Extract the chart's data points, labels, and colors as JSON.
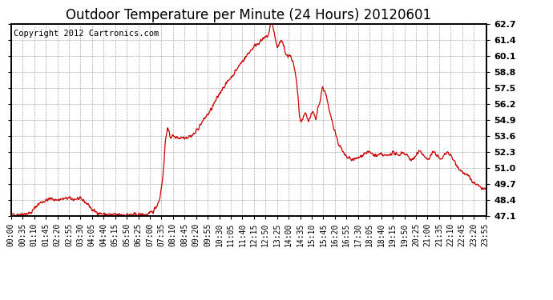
{
  "title": "Outdoor Temperature per Minute (24 Hours) 20120601",
  "copyright_text": "Copyright 2012 Cartronics.com",
  "line_color": "#cc0000",
  "background_color": "#ffffff",
  "grid_color": "#999999",
  "ylim": [
    47.1,
    62.7
  ],
  "yticks": [
    47.1,
    48.4,
    49.7,
    51.0,
    52.3,
    53.6,
    54.9,
    56.2,
    57.5,
    58.8,
    60.1,
    61.4,
    62.7
  ],
  "title_fontsize": 12,
  "copyright_fontsize": 7.5,
  "tick_fontsize": 7,
  "xtick_step": 35,
  "line_width": 0.9,
  "keypoints": [
    [
      0,
      47.2
    ],
    [
      30,
      47.25
    ],
    [
      50,
      47.3
    ],
    [
      60,
      47.35
    ],
    [
      65,
      47.5
    ],
    [
      70,
      47.7
    ],
    [
      75,
      47.85
    ],
    [
      80,
      48.0
    ],
    [
      85,
      48.1
    ],
    [
      90,
      48.2
    ],
    [
      95,
      48.25
    ],
    [
      100,
      48.3
    ],
    [
      105,
      48.35
    ],
    [
      110,
      48.4
    ],
    [
      115,
      48.45
    ],
    [
      120,
      48.5
    ],
    [
      130,
      48.45
    ],
    [
      140,
      48.4
    ],
    [
      150,
      48.45
    ],
    [
      160,
      48.5
    ],
    [
      165,
      48.5
    ],
    [
      170,
      48.55
    ],
    [
      175,
      48.55
    ],
    [
      180,
      48.5
    ],
    [
      190,
      48.45
    ],
    [
      200,
      48.5
    ],
    [
      205,
      48.5
    ],
    [
      210,
      48.45
    ],
    [
      215,
      48.4
    ],
    [
      220,
      48.35
    ],
    [
      225,
      48.2
    ],
    [
      230,
      48.1
    ],
    [
      235,
      48.0
    ],
    [
      240,
      47.8
    ],
    [
      245,
      47.6
    ],
    [
      250,
      47.5
    ],
    [
      260,
      47.4
    ],
    [
      270,
      47.3
    ],
    [
      280,
      47.25
    ],
    [
      300,
      47.2
    ],
    [
      320,
      47.2
    ],
    [
      340,
      47.2
    ],
    [
      360,
      47.2
    ],
    [
      380,
      47.2
    ],
    [
      400,
      47.2
    ],
    [
      410,
      47.2
    ],
    [
      420,
      47.3
    ],
    [
      430,
      47.5
    ],
    [
      440,
      47.9
    ],
    [
      450,
      48.5
    ],
    [
      455,
      49.5
    ],
    [
      460,
      50.5
    ],
    [
      463,
      51.5
    ],
    [
      465,
      52.5
    ],
    [
      467,
      53.2
    ],
    [
      469,
      53.6
    ],
    [
      471,
      54.0
    ],
    [
      473,
      54.2
    ],
    [
      475,
      54.1
    ],
    [
      477,
      53.9
    ],
    [
      480,
      53.7
    ],
    [
      483,
      53.5
    ],
    [
      486,
      53.6
    ],
    [
      490,
      53.6
    ],
    [
      495,
      53.5
    ],
    [
      500,
      53.5
    ],
    [
      505,
      53.5
    ],
    [
      510,
      53.4
    ],
    [
      515,
      53.5
    ],
    [
      520,
      53.5
    ],
    [
      525,
      53.5
    ],
    [
      530,
      53.5
    ],
    [
      535,
      53.5
    ],
    [
      540,
      53.6
    ],
    [
      545,
      53.6
    ],
    [
      550,
      53.7
    ],
    [
      555,
      53.8
    ],
    [
      560,
      54.0
    ],
    [
      565,
      54.2
    ],
    [
      570,
      54.4
    ],
    [
      575,
      54.6
    ],
    [
      580,
      54.8
    ],
    [
      590,
      55.2
    ],
    [
      600,
      55.5
    ],
    [
      610,
      56.0
    ],
    [
      620,
      56.5
    ],
    [
      630,
      57.0
    ],
    [
      640,
      57.5
    ],
    [
      650,
      57.8
    ],
    [
      660,
      58.2
    ],
    [
      670,
      58.5
    ],
    [
      680,
      58.9
    ],
    [
      690,
      59.3
    ],
    [
      700,
      59.7
    ],
    [
      710,
      60.0
    ],
    [
      720,
      60.4
    ],
    [
      730,
      60.7
    ],
    [
      740,
      61.0
    ],
    [
      750,
      61.2
    ],
    [
      760,
      61.4
    ],
    [
      765,
      61.5
    ],
    [
      770,
      61.6
    ],
    [
      775,
      61.7
    ],
    [
      778,
      61.8
    ],
    [
      780,
      62.0
    ],
    [
      782,
      62.2
    ],
    [
      784,
      62.5
    ],
    [
      786,
      62.8
    ],
    [
      788,
      63.0
    ],
    [
      790,
      62.9
    ],
    [
      792,
      62.6
    ],
    [
      794,
      62.3
    ],
    [
      796,
      62.0
    ],
    [
      798,
      61.7
    ],
    [
      800,
      61.4
    ],
    [
      802,
      61.2
    ],
    [
      804,
      61.0
    ],
    [
      806,
      60.8
    ],
    [
      808,
      60.9
    ],
    [
      810,
      61.0
    ],
    [
      812,
      61.1
    ],
    [
      814,
      61.2
    ],
    [
      816,
      61.3
    ],
    [
      818,
      61.3
    ],
    [
      820,
      61.2
    ],
    [
      822,
      61.1
    ],
    [
      824,
      60.9
    ],
    [
      826,
      60.8
    ],
    [
      828,
      60.6
    ],
    [
      830,
      60.4
    ],
    [
      832,
      60.3
    ],
    [
      834,
      60.2
    ],
    [
      836,
      60.1
    ],
    [
      838,
      60.0
    ],
    [
      840,
      60.1
    ],
    [
      842,
      60.2
    ],
    [
      844,
      60.1
    ],
    [
      846,
      60.0
    ],
    [
      848,
      59.9
    ],
    [
      850,
      59.8
    ],
    [
      852,
      59.7
    ],
    [
      854,
      59.5
    ],
    [
      856,
      59.3
    ],
    [
      858,
      59.0
    ],
    [
      860,
      58.7
    ],
    [
      862,
      58.3
    ],
    [
      864,
      57.9
    ],
    [
      866,
      57.4
    ],
    [
      868,
      56.8
    ],
    [
      870,
      56.2
    ],
    [
      872,
      55.5
    ],
    [
      874,
      55.0
    ],
    [
      876,
      54.8
    ],
    [
      878,
      54.7
    ],
    [
      880,
      54.8
    ],
    [
      882,
      54.9
    ],
    [
      884,
      55.0
    ],
    [
      886,
      55.2
    ],
    [
      888,
      55.3
    ],
    [
      890,
      55.4
    ],
    [
      892,
      55.3
    ],
    [
      894,
      55.2
    ],
    [
      896,
      55.0
    ],
    [
      898,
      54.9
    ],
    [
      900,
      54.8
    ],
    [
      902,
      54.9
    ],
    [
      904,
      55.0
    ],
    [
      906,
      55.2
    ],
    [
      908,
      55.3
    ],
    [
      910,
      55.4
    ],
    [
      912,
      55.5
    ],
    [
      914,
      55.5
    ],
    [
      916,
      55.4
    ],
    [
      918,
      55.3
    ],
    [
      920,
      55.1
    ],
    [
      922,
      55.0
    ],
    [
      924,
      55.2
    ],
    [
      926,
      55.5
    ],
    [
      928,
      55.8
    ],
    [
      930,
      56.0
    ],
    [
      932,
      56.2
    ],
    [
      934,
      56.4
    ],
    [
      936,
      56.5
    ],
    [
      938,
      57.0
    ],
    [
      940,
      57.3
    ],
    [
      942,
      57.5
    ],
    [
      944,
      57.5
    ],
    [
      946,
      57.4
    ],
    [
      948,
      57.3
    ],
    [
      950,
      57.2
    ],
    [
      952,
      57.0
    ],
    [
      954,
      56.8
    ],
    [
      956,
      56.5
    ],
    [
      958,
      56.3
    ],
    [
      960,
      56.0
    ],
    [
      962,
      55.7
    ],
    [
      964,
      55.5
    ],
    [
      966,
      55.3
    ],
    [
      968,
      55.2
    ],
    [
      970,
      55.0
    ],
    [
      975,
      54.5
    ],
    [
      980,
      54.0
    ],
    [
      985,
      53.5
    ],
    [
      990,
      53.0
    ],
    [
      995,
      52.8
    ],
    [
      1000,
      52.5
    ],
    [
      1010,
      52.0
    ],
    [
      1020,
      51.8
    ],
    [
      1030,
      51.7
    ],
    [
      1040,
      51.7
    ],
    [
      1050,
      51.8
    ],
    [
      1060,
      52.0
    ],
    [
      1070,
      52.2
    ],
    [
      1080,
      52.3
    ],
    [
      1090,
      52.2
    ],
    [
      1100,
      52.0
    ],
    [
      1110,
      52.0
    ],
    [
      1120,
      52.1
    ],
    [
      1130,
      52.0
    ],
    [
      1140,
      52.0
    ],
    [
      1150,
      52.2
    ],
    [
      1155,
      52.3
    ],
    [
      1160,
      52.2
    ],
    [
      1165,
      52.1
    ],
    [
      1170,
      52.0
    ],
    [
      1175,
      52.1
    ],
    [
      1180,
      52.2
    ],
    [
      1185,
      52.3
    ],
    [
      1190,
      52.2
    ],
    [
      1195,
      52.1
    ],
    [
      1200,
      52.0
    ],
    [
      1205,
      51.8
    ],
    [
      1210,
      51.7
    ],
    [
      1215,
      51.7
    ],
    [
      1220,
      51.8
    ],
    [
      1225,
      52.0
    ],
    [
      1230,
      52.2
    ],
    [
      1235,
      52.3
    ],
    [
      1240,
      52.3
    ],
    [
      1245,
      52.2
    ],
    [
      1250,
      52.0
    ],
    [
      1255,
      51.8
    ],
    [
      1260,
      51.7
    ],
    [
      1265,
      51.8
    ],
    [
      1270,
      52.0
    ],
    [
      1275,
      52.2
    ],
    [
      1280,
      52.3
    ],
    [
      1285,
      52.2
    ],
    [
      1290,
      52.0
    ],
    [
      1295,
      51.8
    ],
    [
      1300,
      51.7
    ],
    [
      1305,
      51.8
    ],
    [
      1310,
      52.0
    ],
    [
      1315,
      52.2
    ],
    [
      1320,
      52.3
    ],
    [
      1325,
      52.2
    ],
    [
      1330,
      52.0
    ],
    [
      1335,
      51.8
    ],
    [
      1340,
      51.6
    ],
    [
      1345,
      51.4
    ],
    [
      1350,
      51.2
    ],
    [
      1355,
      51.0
    ],
    [
      1360,
      50.8
    ],
    [
      1365,
      50.7
    ],
    [
      1370,
      50.6
    ],
    [
      1375,
      50.5
    ],
    [
      1380,
      50.4
    ],
    [
      1385,
      50.3
    ],
    [
      1390,
      50.1
    ],
    [
      1395,
      49.9
    ],
    [
      1400,
      49.8
    ],
    [
      1405,
      49.7
    ],
    [
      1410,
      49.6
    ],
    [
      1415,
      49.5
    ],
    [
      1420,
      49.4
    ],
    [
      1425,
      49.4
    ],
    [
      1430,
      49.3
    ],
    [
      1435,
      49.3
    ],
    [
      1439,
      49.3
    ]
  ]
}
